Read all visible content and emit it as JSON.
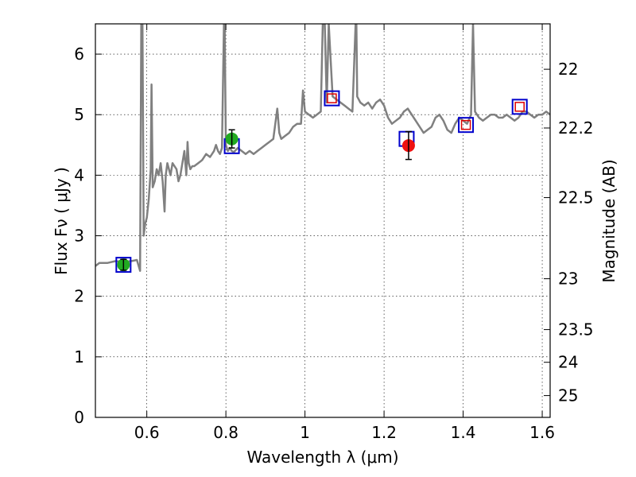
{
  "chart_data": {
    "type": "line",
    "xlabel": "Wavelength  λ (μm)",
    "ylabel": "Flux  Fν  ( μJy )",
    "y2label": "Magnitude (AB)",
    "xlim": [
      0.47,
      1.62
    ],
    "ylim": [
      0,
      6.5
    ],
    "x_ticks": [
      0.6,
      0.8,
      1.0,
      1.2,
      1.4,
      1.6
    ],
    "x_tick_labels": [
      "0.6",
      "0.8",
      "1",
      "1.2",
      "1.4",
      "1.6"
    ],
    "y_ticks": [
      0,
      1,
      2,
      3,
      4,
      5,
      6
    ],
    "y_tick_labels": [
      "0",
      "1",
      "2",
      "3",
      "4",
      "5",
      "6"
    ],
    "y2_ticks": [
      {
        "label": "22",
        "flux": 5.75
      },
      {
        "label": "22.2",
        "flux": 4.78
      },
      {
        "label": "22.5",
        "flux": 3.63
      },
      {
        "label": "23",
        "flux": 2.29
      },
      {
        "label": "23.5",
        "flux": 1.45
      },
      {
        "label": "24",
        "flux": 0.91
      },
      {
        "label": "25",
        "flux": 0.36
      }
    ],
    "grid": true,
    "colors": {
      "spectrum": "#808080",
      "model_box": "#0000cc",
      "model_inner": "#dd0000",
      "observed_green": "#22aa22",
      "observed_red": "#ee1111",
      "errorbar": "#000000"
    },
    "series": [
      {
        "style": "spectrum",
        "x": [
          0.47,
          0.48,
          0.5,
          0.52,
          0.54,
          0.56,
          0.575,
          0.583,
          0.586,
          0.589,
          0.592,
          0.596,
          0.6,
          0.605,
          0.61,
          0.612,
          0.615,
          0.62,
          0.625,
          0.63,
          0.635,
          0.64,
          0.645,
          0.648,
          0.652,
          0.656,
          0.66,
          0.665,
          0.67,
          0.675,
          0.68,
          0.685,
          0.69,
          0.695,
          0.7,
          0.703,
          0.706,
          0.71,
          0.715,
          0.72,
          0.73,
          0.74,
          0.75,
          0.76,
          0.77,
          0.775,
          0.78,
          0.785,
          0.79,
          0.795,
          0.797,
          0.8,
          0.805,
          0.81,
          0.815,
          0.82,
          0.83,
          0.84,
          0.85,
          0.86,
          0.87,
          0.88,
          0.89,
          0.9,
          0.91,
          0.92,
          0.93,
          0.935,
          0.94,
          0.95,
          0.96,
          0.97,
          0.98,
          0.99,
          0.995,
          1.0,
          1.01,
          1.02,
          1.03,
          1.04,
          1.045,
          1.05,
          1.055,
          1.06,
          1.07,
          1.08,
          1.09,
          1.1,
          1.11,
          1.12,
          1.128,
          1.13,
          1.132,
          1.14,
          1.15,
          1.16,
          1.17,
          1.18,
          1.19,
          1.2,
          1.21,
          1.22,
          1.23,
          1.24,
          1.25,
          1.26,
          1.27,
          1.28,
          1.29,
          1.3,
          1.31,
          1.32,
          1.33,
          1.34,
          1.35,
          1.36,
          1.37,
          1.38,
          1.39,
          1.4,
          1.41,
          1.42,
          1.425,
          1.43,
          1.44,
          1.45,
          1.46,
          1.47,
          1.48,
          1.49,
          1.5,
          1.51,
          1.52,
          1.53,
          1.54,
          1.55,
          1.56,
          1.57,
          1.58,
          1.59,
          1.6,
          1.61,
          1.62
        ],
        "y": [
          2.5,
          2.55,
          2.55,
          2.58,
          2.57,
          2.58,
          2.6,
          2.42,
          6.5,
          6.5,
          3.0,
          3.2,
          3.3,
          3.6,
          4.1,
          5.5,
          3.8,
          3.9,
          4.1,
          4.0,
          4.2,
          3.9,
          3.4,
          4.0,
          4.2,
          4.1,
          4.0,
          4.2,
          4.15,
          4.1,
          3.9,
          4.0,
          4.2,
          4.4,
          4.0,
          4.55,
          4.2,
          4.1,
          4.15,
          4.15,
          4.2,
          4.25,
          4.35,
          4.3,
          4.4,
          4.5,
          4.4,
          4.35,
          4.45,
          6.5,
          6.5,
          4.5,
          4.4,
          4.45,
          4.4,
          4.38,
          4.45,
          4.4,
          4.35,
          4.4,
          4.35,
          4.4,
          4.45,
          4.5,
          4.55,
          4.6,
          5.1,
          4.7,
          4.6,
          4.65,
          4.7,
          4.8,
          4.85,
          4.85,
          5.4,
          5.05,
          5.0,
          4.95,
          5.0,
          5.05,
          6.5,
          6.5,
          5.2,
          6.5,
          5.3,
          5.25,
          5.2,
          5.15,
          5.1,
          5.05,
          6.5,
          6.5,
          5.3,
          5.2,
          5.15,
          5.2,
          5.1,
          5.2,
          5.25,
          5.15,
          4.95,
          4.85,
          4.9,
          4.95,
          5.05,
          5.1,
          5.0,
          4.9,
          4.8,
          4.7,
          4.75,
          4.8,
          4.95,
          5.0,
          4.9,
          4.75,
          4.7,
          4.85,
          4.95,
          4.9,
          4.85,
          5.0,
          6.5,
          5.05,
          4.95,
          4.9,
          4.95,
          5.0,
          5.0,
          4.95,
          4.95,
          5.0,
          4.95,
          4.9,
          4.95,
          5.05,
          5.05,
          5.0,
          4.95,
          5.0,
          5.0,
          5.05,
          5.0
        ]
      },
      {
        "style": "model_box",
        "x": [
          0.541,
          0.815,
          1.068,
          1.257,
          1.407,
          1.543
        ],
        "y": [
          2.52,
          4.48,
          5.27,
          4.6,
          4.83,
          5.13
        ]
      },
      {
        "style": "model_inner",
        "x": [
          1.068,
          1.407,
          1.543
        ],
        "y": [
          5.27,
          4.83,
          5.13
        ]
      },
      {
        "style": "observed",
        "x": [
          0.541,
          0.815,
          1.262
        ],
        "y": [
          2.52,
          4.6,
          4.49
        ],
        "yerr": [
          0.09,
          0.15,
          0.23
        ],
        "color_keys": [
          "observed_green",
          "observed_green",
          "observed_red"
        ]
      }
    ]
  }
}
